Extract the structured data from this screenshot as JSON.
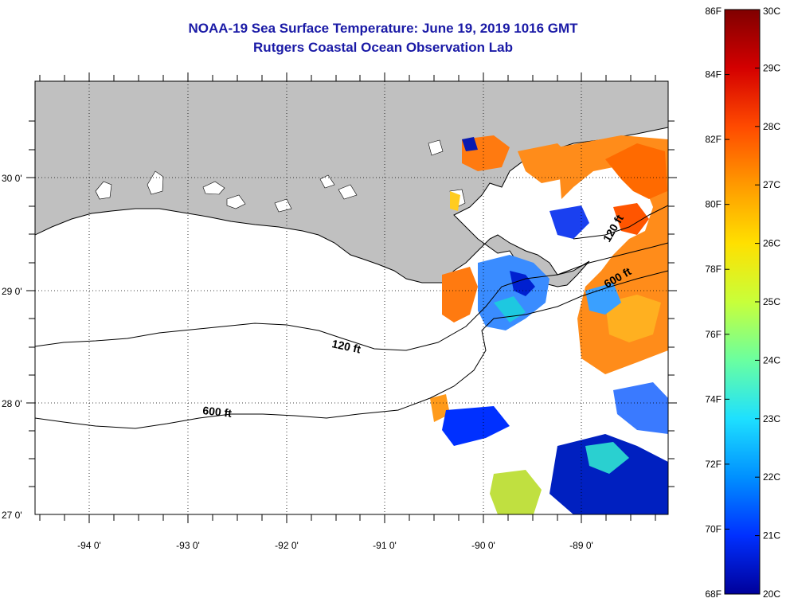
{
  "title_line1": "NOAA-19 Sea Surface Temperature:  June 19, 2019 1016 GMT",
  "title_line2": "Rutgers Coastal Ocean Observation Lab",
  "lat_labels": [
    "30 0'",
    "29 0'",
    "28 0'",
    "27 0'"
  ],
  "lon_labels": [
    "-94 0'",
    "-93 0'",
    "-92 0'",
    "-91 0'",
    "-90 0'",
    "-89 0'"
  ],
  "contour_labels": [
    "120 ft",
    "600 ft",
    "120 ft",
    "600 ft"
  ],
  "colorbar": {
    "fahrenheit_labels": [
      "86F",
      "84F",
      "82F",
      "80F",
      "78F",
      "76F",
      "74F",
      "72F",
      "70F",
      "68F"
    ],
    "celsius_labels": [
      "30C",
      "29C",
      "28C",
      "27C",
      "26C",
      "25C",
      "24C",
      "23C",
      "22C",
      "21C",
      "20C"
    ],
    "colors_top_to_bottom": [
      "#800000",
      "#d40000",
      "#ff4a00",
      "#ff9a00",
      "#ffe000",
      "#c8ff3a",
      "#6affa0",
      "#1ee0ff",
      "#0090ff",
      "#0030ff",
      "#00009a"
    ]
  },
  "colors": {
    "land": "#c0c0c0",
    "ocean": "#ffffff",
    "title": "#1a1aa6"
  }
}
